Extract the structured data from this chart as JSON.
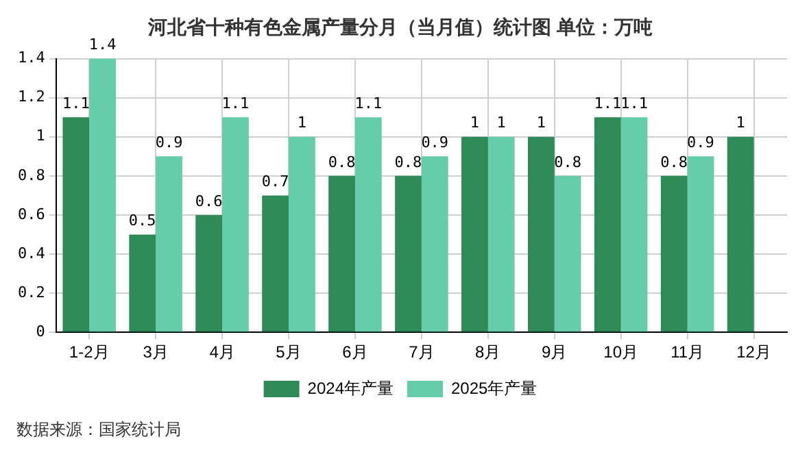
{
  "chart_data": {
    "type": "bar",
    "title": "河北省十种有色金属产量分月（当月值）统计图 单位：万吨",
    "categories": [
      "1-2月",
      "3月",
      "4月",
      "5月",
      "6月",
      "7月",
      "8月",
      "9月",
      "10月",
      "11月",
      "12月"
    ],
    "series": [
      {
        "name": "2024年产量",
        "color": "#2e8b57",
        "values": [
          1.1,
          0.5,
          0.6,
          0.7,
          0.8,
          0.8,
          1,
          1,
          1.1,
          0.8,
          1
        ]
      },
      {
        "name": "2025年产量",
        "color": "#66cdaa",
        "values": [
          1.4,
          0.9,
          1.1,
          1,
          1.1,
          0.9,
          1,
          0.8,
          1.1,
          0.9,
          null
        ]
      }
    ],
    "ylim": [
      0,
      1.4
    ],
    "yticks": [
      0,
      0.2,
      0.4,
      0.6,
      0.8,
      1,
      1.2,
      1.4
    ],
    "grid": true,
    "legend": "bottom",
    "data_labels": true,
    "annotations": [
      "数据来源：国家统计局"
    ]
  }
}
